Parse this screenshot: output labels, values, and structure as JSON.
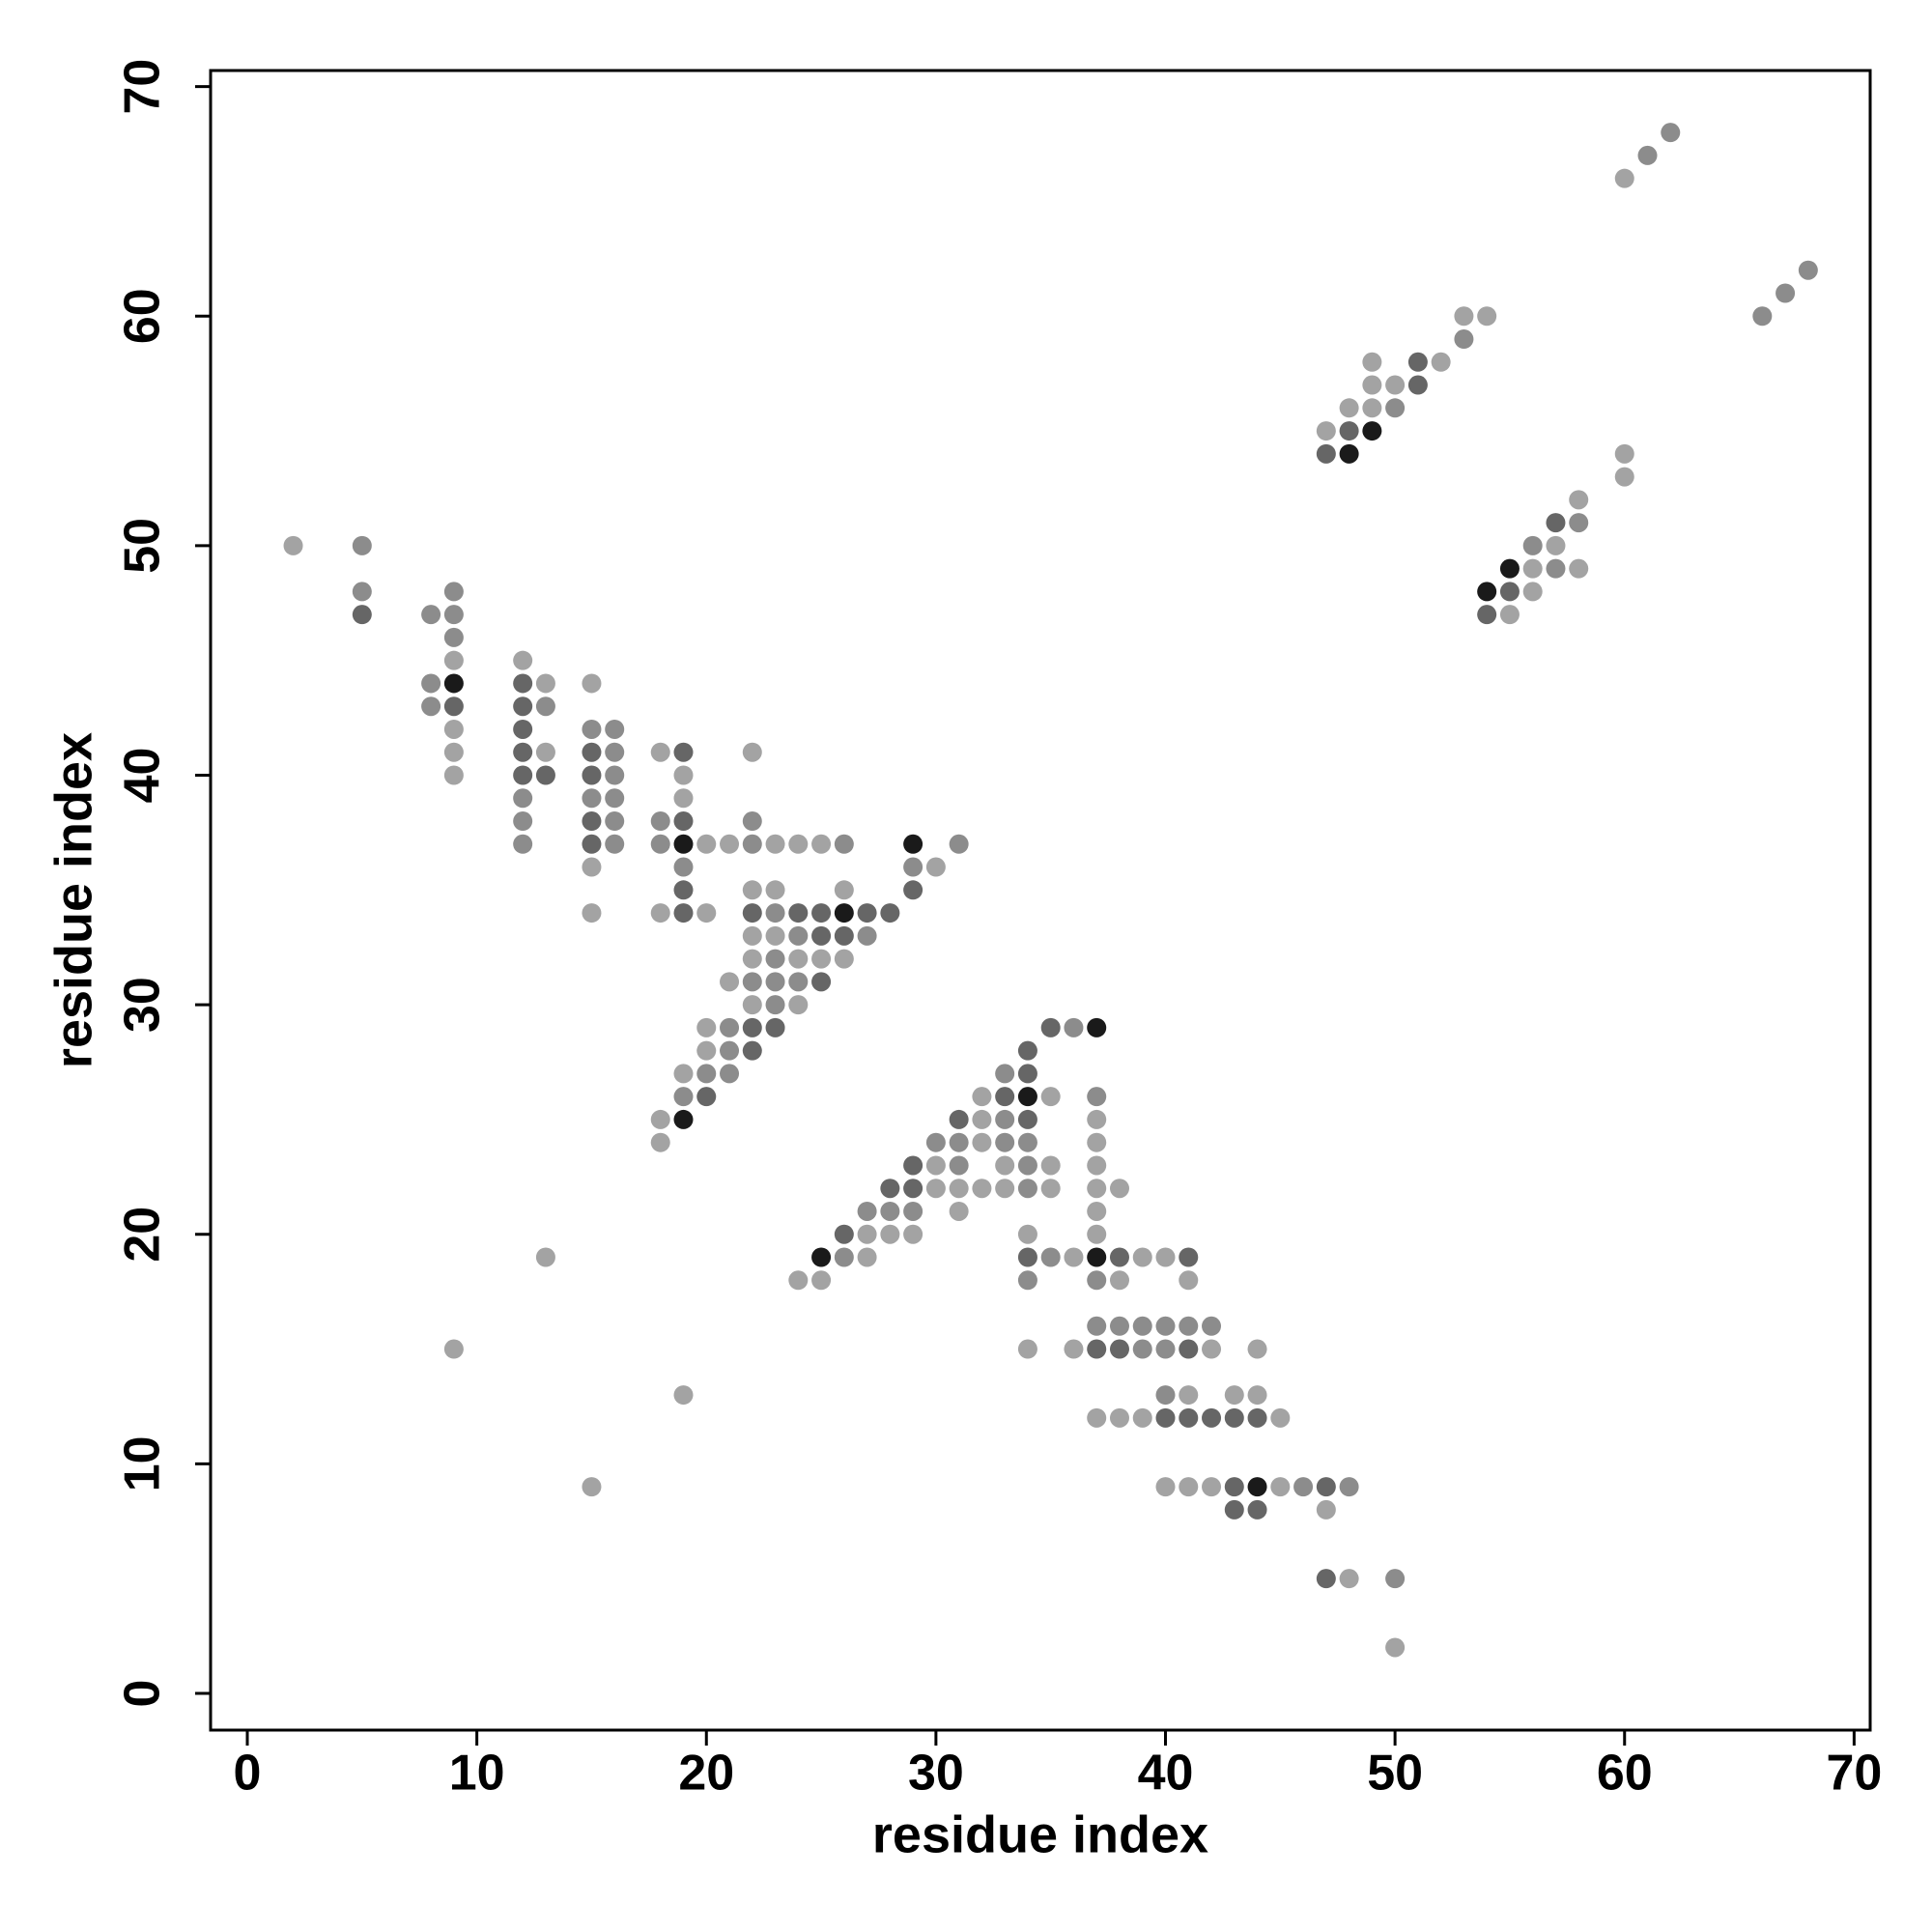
{
  "chart_data": {
    "type": "scatter",
    "xlabel": "residue index",
    "ylabel": "residue index",
    "xlim": [
      -1.6,
      70.7
    ],
    "ylim": [
      -1.6,
      70.7
    ],
    "xticks": [
      0,
      10,
      20,
      30,
      40,
      50,
      60,
      70
    ],
    "yticks": [
      0,
      10,
      20,
      30,
      40,
      50,
      60,
      70
    ],
    "series": [
      {
        "color": "#a3a3a3",
        "x": [
          60,
          53,
          54,
          49,
          52,
          49,
          50,
          48,
          49,
          47,
          60,
          60,
          58,
          2,
          57,
          56,
          58,
          56,
          55,
          9,
          12,
          13,
          15,
          9,
          9,
          13,
          18,
          22,
          9,
          19,
          19,
          20,
          21,
          23,
          24,
          25,
          15,
          30,
          22,
          23,
          26,
          15,
          18,
          20,
          22,
          23,
          22,
          24,
          25,
          26,
          21,
          22,
          24,
          20,
          20,
          19,
          32,
          35,
          18,
          32,
          37,
          18,
          32,
          37,
          30,
          33,
          35,
          37,
          30,
          31,
          32,
          33,
          35,
          37,
          38,
          31,
          37,
          27,
          28,
          29,
          34,
          37,
          13,
          27,
          36,
          39,
          40,
          24,
          25,
          38,
          41,
          9,
          34,
          36,
          42,
          44,
          19,
          41,
          43,
          44,
          37,
          38,
          39,
          45,
          15,
          40,
          41,
          42,
          45,
          47,
          48,
          50
        ],
        "values": [
          66,
          60,
          60,
          58,
          58,
          57,
          57,
          56,
          56,
          55,
          54,
          53,
          52,
          50,
          50,
          49,
          49,
          48,
          47,
          45,
          45,
          44,
          44,
          42,
          41,
          41,
          41,
          41,
          40,
          40,
          39,
          37,
          37,
          37,
          37,
          37,
          36,
          36,
          35,
          35,
          35,
          34,
          34,
          34,
          33,
          33,
          32,
          32,
          32,
          32,
          31,
          30,
          30,
          29,
          28,
          27,
          26,
          26,
          25,
          25,
          25,
          24,
          24,
          24,
          23,
          23,
          23,
          23,
          22,
          22,
          22,
          22,
          22,
          22,
          22,
          21,
          21,
          20,
          20,
          20,
          20,
          20,
          19,
          19,
          19,
          19,
          19,
          18,
          18,
          18,
          18,
          15,
          15,
          15,
          15,
          15,
          13,
          13,
          13,
          13,
          12,
          12,
          12,
          12,
          9,
          9,
          9,
          9,
          9,
          8,
          5,
          2
        ]
      },
      {
        "color": "#8c8c8c",
        "x": [
          62,
          61,
          68,
          67,
          66,
          53,
          50,
          58,
          5,
          56,
          57,
          5,
          9,
          8,
          9,
          9,
          8,
          8,
          13,
          15,
          16,
          16,
          16,
          12,
          15,
          16,
          12,
          16,
          18,
          22,
          12,
          16,
          18,
          22,
          26,
          31,
          19,
          29,
          23,
          24,
          27,
          23,
          22,
          23,
          24,
          23,
          36,
          21,
          21,
          20,
          21,
          33,
          19,
          37,
          33,
          30,
          31,
          33,
          34,
          31,
          34,
          34,
          27,
          28,
          29,
          26,
          35,
          34,
          37,
          37,
          38,
          39,
          40,
          41,
          42,
          39,
          40,
          40,
          46,
          48,
          50
        ],
        "values": [
          68,
          67,
          62,
          61,
          60,
          59,
          56,
          51,
          50,
          50,
          49,
          48,
          48,
          47,
          47,
          46,
          44,
          43,
          43,
          42,
          42,
          41,
          40,
          39,
          39,
          39,
          38,
          38,
          38,
          38,
          37,
          37,
          37,
          37,
          37,
          37,
          36,
          36,
          34,
          33,
          33,
          32,
          31,
          31,
          31,
          30,
          29,
          29,
          28,
          27,
          27,
          27,
          26,
          26,
          25,
          24,
          24,
          24,
          24,
          23,
          23,
          22,
          21,
          21,
          21,
          19,
          19,
          18,
          18,
          16,
          16,
          16,
          16,
          16,
          16,
          15,
          15,
          13,
          9,
          9,
          5
        ]
      },
      {
        "color": "#666666",
        "x": [
          51,
          51,
          48,
          47,
          57,
          55,
          5,
          54,
          12,
          9,
          12,
          12,
          12,
          15,
          19,
          12,
          13,
          15,
          15,
          19,
          15,
          19,
          29,
          19,
          22,
          24,
          25,
          27,
          28,
          25,
          26,
          25,
          22,
          23,
          35,
          22,
          34,
          34,
          20,
          33,
          31,
          34,
          29,
          28,
          29,
          26,
          34,
          38,
          41,
          37,
          38,
          41,
          40,
          41,
          42,
          43,
          44,
          43,
          47,
          43,
          44,
          47
        ],
        "values": [
          58,
          57,
          55,
          54,
          51,
          48,
          47,
          47,
          44,
          43,
          43,
          42,
          41,
          41,
          41,
          40,
          40,
          40,
          38,
          38,
          37,
          35,
          35,
          34,
          34,
          34,
          34,
          34,
          34,
          33,
          33,
          31,
          29,
          29,
          29,
          28,
          28,
          27,
          26,
          26,
          25,
          25,
          23,
          22,
          22,
          20,
          19,
          19,
          19,
          15,
          15,
          15,
          12,
          12,
          12,
          12,
          12,
          9,
          9,
          8,
          8,
          5
        ]
      },
      {
        "color": "#1a1a1a",
        "x": [
          49,
          48,
          55,
          54,
          9,
          19,
          29,
          26,
          37,
          34,
          19,
          25,
          37,
          44
        ],
        "values": [
          55,
          54,
          49,
          48,
          44,
          37,
          37,
          34,
          29,
          26,
          25,
          19,
          19,
          9
        ]
      }
    ]
  }
}
